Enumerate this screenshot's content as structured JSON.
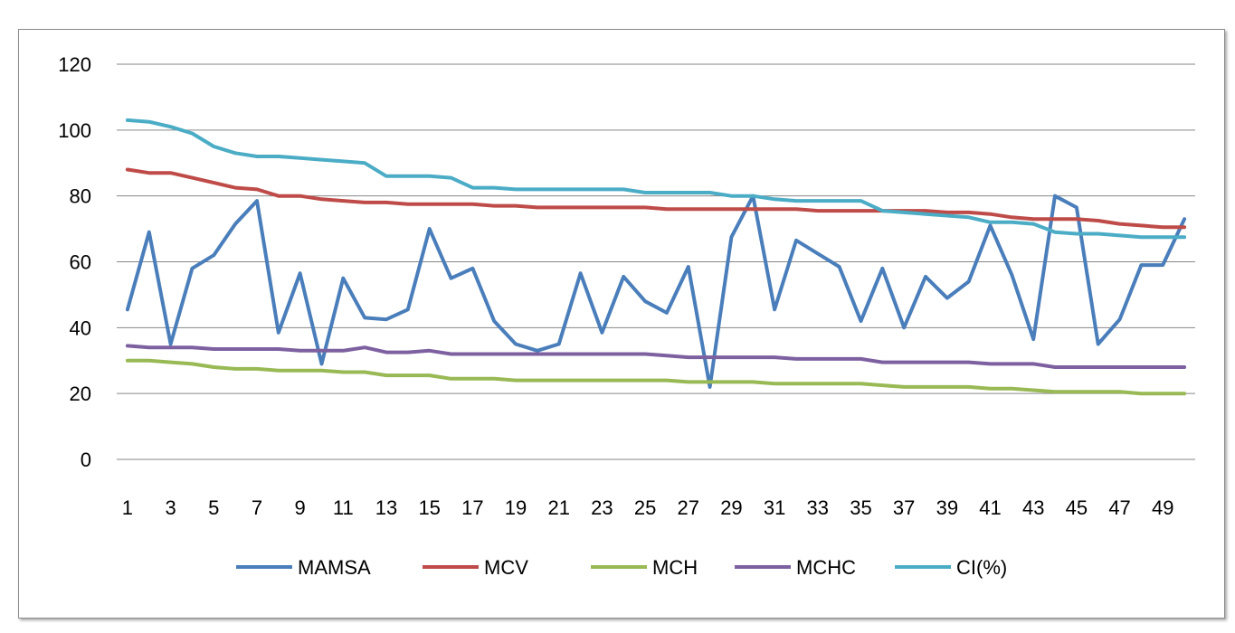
{
  "chart_data": {
    "type": "line",
    "title": "",
    "xlabel": "",
    "ylabel": "",
    "ylim": [
      0,
      120
    ],
    "y_ticks": [
      "0",
      "20",
      "40",
      "60",
      "80",
      "100",
      "120"
    ],
    "x": [
      1,
      2,
      3,
      4,
      5,
      6,
      7,
      8,
      9,
      10,
      11,
      12,
      13,
      14,
      15,
      16,
      17,
      18,
      19,
      20,
      21,
      22,
      23,
      24,
      25,
      26,
      27,
      28,
      29,
      30,
      31,
      32,
      33,
      34,
      35,
      36,
      37,
      38,
      39,
      40,
      41,
      42,
      43,
      44,
      45,
      46,
      47,
      48,
      49,
      50
    ],
    "x_tick_labels": [
      "1",
      "3",
      "5",
      "7",
      "9",
      "11",
      "13",
      "15",
      "17",
      "19",
      "21",
      "23",
      "25",
      "27",
      "29",
      "31",
      "33",
      "35",
      "37",
      "39",
      "41",
      "43",
      "45",
      "47",
      "49"
    ],
    "grid": true,
    "legend_position": "bottom",
    "series": [
      {
        "name": "MAMSA",
        "color": "#4a7ebb",
        "values": [
          45.5,
          69,
          35,
          58,
          62,
          71.5,
          78.5,
          38.5,
          56.5,
          29,
          55,
          43,
          42.5,
          45.5,
          70,
          55,
          58,
          42,
          35,
          33,
          35,
          56.5,
          38.5,
          55.5,
          48,
          44.5,
          58.5,
          22,
          67.5,
          80,
          45.5,
          66.5,
          62.5,
          58.5,
          42,
          58,
          40,
          55.5,
          49,
          54,
          71,
          56,
          36.5,
          80,
          76.5,
          35,
          42.5,
          59,
          59,
          73
        ]
      },
      {
        "name": "MCV",
        "color": "#be4b48",
        "values": [
          88,
          87,
          87,
          85.5,
          84,
          82.5,
          82,
          80,
          80,
          79,
          78.5,
          78,
          78,
          77.5,
          77.5,
          77.5,
          77.5,
          77,
          77,
          76.5,
          76.5,
          76.5,
          76.5,
          76.5,
          76.5,
          76,
          76,
          76,
          76,
          76,
          76,
          76,
          75.5,
          75.5,
          75.5,
          75.5,
          75.5,
          75.5,
          75,
          75,
          74.5,
          73.5,
          73,
          73,
          73,
          72.5,
          71.5,
          71,
          70.5,
          70.5
        ]
      },
      {
        "name": "MCH",
        "color": "#98b954",
        "values": [
          30,
          30,
          29.5,
          29,
          28,
          27.5,
          27.5,
          27,
          27,
          27,
          26.5,
          26.5,
          25.5,
          25.5,
          25.5,
          24.5,
          24.5,
          24.5,
          24,
          24,
          24,
          24,
          24,
          24,
          24,
          24,
          23.5,
          23.5,
          23.5,
          23.5,
          23,
          23,
          23,
          23,
          23,
          22.5,
          22,
          22,
          22,
          22,
          21.5,
          21.5,
          21,
          20.5,
          20.5,
          20.5,
          20.5,
          20,
          20,
          20
        ]
      },
      {
        "name": "MCHC",
        "color": "#7d60a0",
        "values": [
          34.5,
          34,
          34,
          34,
          33.5,
          33.5,
          33.5,
          33.5,
          33,
          33,
          33,
          34,
          32.5,
          32.5,
          33,
          32,
          32,
          32,
          32,
          32,
          32,
          32,
          32,
          32,
          32,
          31.5,
          31,
          31,
          31,
          31,
          31,
          30.5,
          30.5,
          30.5,
          30.5,
          29.5,
          29.5,
          29.5,
          29.5,
          29.5,
          29,
          29,
          29,
          28,
          28,
          28,
          28,
          28,
          28,
          28
        ]
      },
      {
        "name": "CI(%)",
        "color": "#4bacc6",
        "values": [
          103,
          102.5,
          101,
          99,
          95,
          93,
          92,
          92,
          91.5,
          91,
          90.5,
          90,
          86,
          86,
          86,
          85.5,
          82.5,
          82.5,
          82,
          82,
          82,
          82,
          82,
          82,
          81,
          81,
          81,
          81,
          80,
          80,
          79,
          78.5,
          78.5,
          78.5,
          78.5,
          75.5,
          75,
          74.5,
          74,
          73.5,
          72,
          72,
          71.5,
          69,
          68.5,
          68.5,
          68,
          67.5,
          67.5,
          67.5
        ]
      }
    ]
  }
}
